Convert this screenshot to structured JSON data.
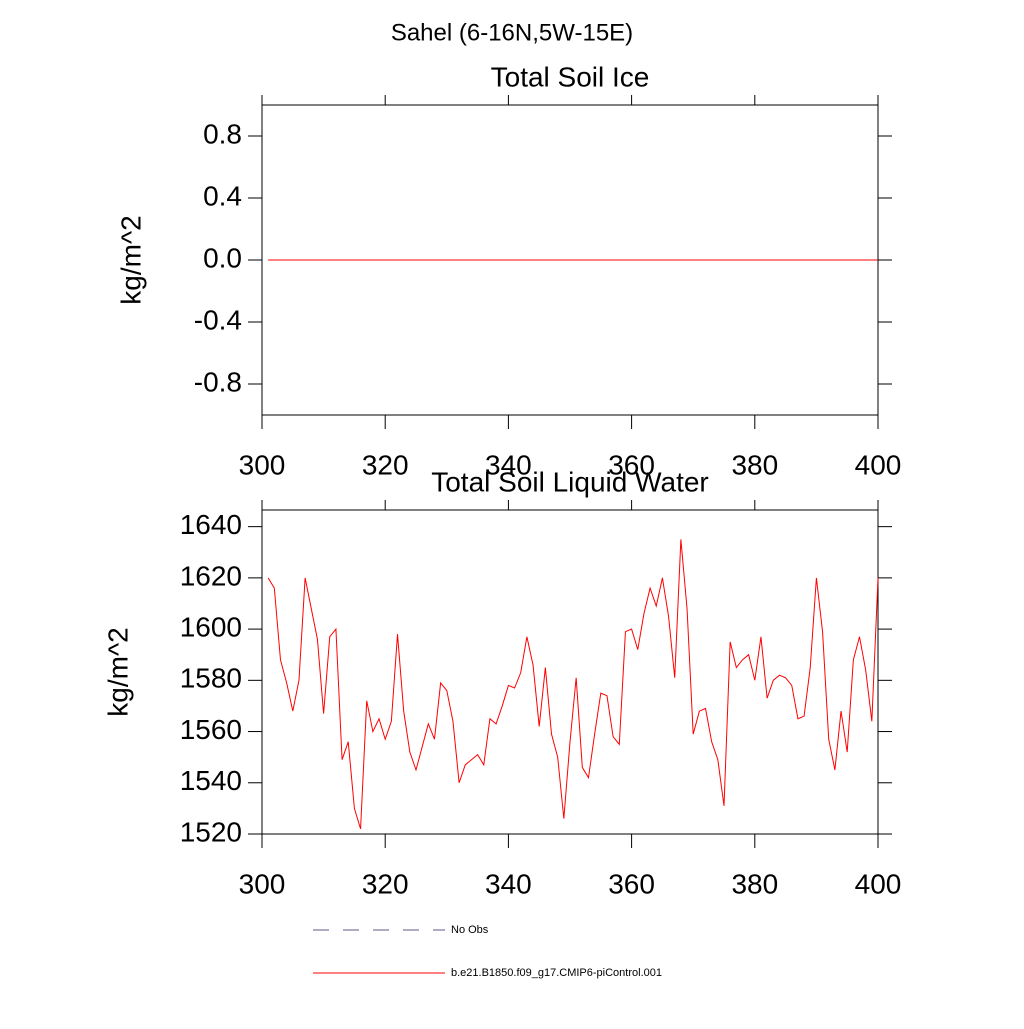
{
  "title": "Sahel (6-16N,5W-15E)",
  "chart_data": [
    {
      "type": "line",
      "title": "Total Soil Ice",
      "ylabel": "kg/m^2",
      "x": [
        301,
        302,
        303,
        304,
        305,
        306,
        307,
        308,
        309,
        310,
        311,
        312,
        313,
        314,
        315,
        316,
        317,
        318,
        319,
        320,
        321,
        322,
        323,
        324,
        325,
        326,
        327,
        328,
        329,
        330,
        331,
        332,
        333,
        334,
        335,
        336,
        337,
        338,
        339,
        340,
        341,
        342,
        343,
        344,
        345,
        346,
        347,
        348,
        349,
        350,
        351,
        352,
        353,
        354,
        355,
        356,
        357,
        358,
        359,
        360,
        361,
        362,
        363,
        364,
        365,
        366,
        367,
        368,
        369,
        370,
        371,
        372,
        373,
        374,
        375,
        376,
        377,
        378,
        379,
        380,
        381,
        382,
        383,
        384,
        385,
        386,
        387,
        388,
        389,
        390,
        391,
        392,
        393,
        394,
        395,
        396,
        397,
        398,
        399,
        400
      ],
      "series": [
        {
          "color": "#ff0000",
          "values": [
            0,
            0,
            0,
            0,
            0,
            0,
            0,
            0,
            0,
            0,
            0,
            0,
            0,
            0,
            0,
            0,
            0,
            0,
            0,
            0,
            0,
            0,
            0,
            0,
            0,
            0,
            0,
            0,
            0,
            0,
            0,
            0,
            0,
            0,
            0,
            0,
            0,
            0,
            0,
            0,
            0,
            0,
            0,
            0,
            0,
            0,
            0,
            0,
            0,
            0,
            0,
            0,
            0,
            0,
            0,
            0,
            0,
            0,
            0,
            0,
            0,
            0,
            0,
            0,
            0,
            0,
            0,
            0,
            0,
            0,
            0,
            0,
            0,
            0,
            0,
            0,
            0,
            0,
            0,
            0,
            0,
            0,
            0,
            0,
            0,
            0,
            0,
            0,
            0,
            0,
            0,
            0,
            0,
            0,
            0,
            0,
            0,
            0,
            0,
            0
          ]
        }
      ],
      "xlim": [
        300,
        400
      ],
      "xticks": [
        300,
        320,
        340,
        360,
        380,
        400
      ],
      "ylim": [
        -1,
        1
      ],
      "yticks": [
        -0.8,
        -0.4,
        {
          "value": 0,
          "label": "0.0"
        },
        0.4,
        0.8
      ]
    },
    {
      "type": "line",
      "title": "Total Soil Liquid Water",
      "ylabel": "kg/m^2",
      "x": [
        301,
        302,
        303,
        304,
        305,
        306,
        307,
        308,
        309,
        310,
        311,
        312,
        313,
        314,
        315,
        316,
        317,
        318,
        319,
        320,
        321,
        322,
        323,
        324,
        325,
        326,
        327,
        328,
        329,
        330,
        331,
        332,
        333,
        334,
        335,
        336,
        337,
        338,
        339,
        340,
        341,
        342,
        343,
        344,
        345,
        346,
        347,
        348,
        349,
        350,
        351,
        352,
        353,
        354,
        355,
        356,
        357,
        358,
        359,
        360,
        361,
        362,
        363,
        364,
        365,
        366,
        367,
        368,
        369,
        370,
        371,
        372,
        373,
        374,
        375,
        376,
        377,
        378,
        379,
        380,
        381,
        382,
        383,
        384,
        385,
        386,
        387,
        388,
        389,
        390,
        391,
        392,
        393,
        394,
        395,
        396,
        397,
        398,
        399,
        400
      ],
      "series": [
        {
          "color": "#ff0000",
          "values": [
            1620,
            1616,
            1588,
            1579,
            1568,
            1580,
            1620,
            1608,
            1596,
            1567,
            1597,
            1600,
            1549,
            1556,
            1530,
            1522,
            1572,
            1560,
            1565,
            1557,
            1564,
            1598,
            1568,
            1552,
            1545,
            1554,
            1563,
            1557,
            1579,
            1576,
            1564,
            1540,
            1547,
            1549,
            1551,
            1547,
            1565,
            1563,
            1570,
            1578,
            1577,
            1583,
            1597,
            1586,
            1562,
            1585,
            1559,
            1550,
            1526,
            1556,
            1581,
            1546,
            1542,
            1559,
            1575,
            1574,
            1558,
            1555,
            1599,
            1600,
            1592,
            1606,
            1616,
            1609,
            1620,
            1605,
            1581,
            1635,
            1608,
            1559,
            1568,
            1569,
            1556,
            1549,
            1531,
            1595,
            1585,
            1588,
            1590,
            1580,
            1597,
            1573,
            1580,
            1582,
            1581,
            1578,
            1565,
            1566,
            1585,
            1620,
            1599,
            1557,
            1545,
            1568,
            1552,
            1588,
            1597,
            1584,
            1564,
            1620
          ]
        }
      ],
      "xlim": [
        300,
        400
      ],
      "xticks": [
        300,
        320,
        340,
        360,
        380,
        400
      ],
      "ylim": [
        1520,
        1646.5
      ],
      "yticks": [
        1520,
        1540,
        1560,
        1580,
        1600,
        1620,
        1640
      ]
    }
  ],
  "legend": [
    {
      "name": "No Obs",
      "color": "#5a5a8a",
      "dash": true
    },
    {
      "name": "b.e21.B1850.f09_g17.CMIP6-piControl.001",
      "color": "#ff0000",
      "dash": false
    }
  ]
}
